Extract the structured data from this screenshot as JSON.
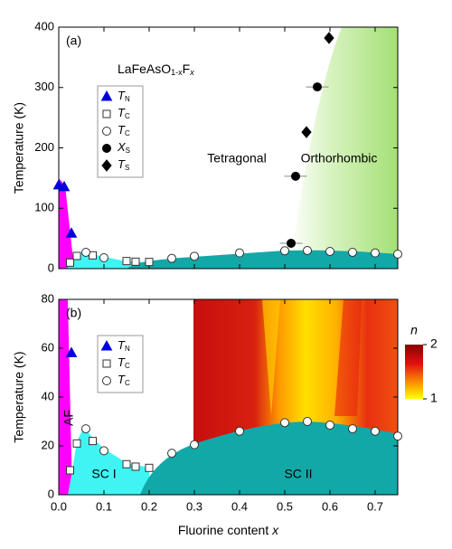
{
  "chart_data": [
    {
      "type": "scatter",
      "panel_label": "(a)",
      "formula": [
        "LaFeAsO",
        "1-x",
        "F",
        "x"
      ],
      "region_labels": [
        "Tetragonal",
        "Orthorhombic"
      ],
      "ylabel": "Temperature (K)",
      "xlim": [
        0,
        0.75
      ],
      "xticks": [
        {
          "value": 0,
          "label": "0.0"
        },
        0.1,
        0.2,
        0.3,
        0.4,
        0.5,
        0.6,
        0.7
      ],
      "ylim": [
        0,
        400
      ],
      "yticks": [
        0,
        100,
        200,
        300,
        400
      ],
      "series": [
        {
          "name": "TN",
          "marker": "triangle",
          "color": "#0000dd",
          "x": [
            0,
            0.012,
            0.028
          ],
          "values": [
            138,
            135,
            58
          ]
        },
        {
          "name": "TC",
          "marker": "square",
          "color": "#ffffff",
          "x": [
            0.025,
            0.04,
            0.075,
            0.15,
            0.17,
            0.2
          ],
          "values": [
            10,
            21,
            22,
            12.5,
            11.5,
            11
          ]
        },
        {
          "name": "TC",
          "marker": "circle",
          "color": "#ffffff",
          "x": [
            0.06,
            0.1,
            0.25,
            0.3,
            0.4,
            0.5,
            0.55,
            0.6,
            0.65,
            0.7,
            0.75
          ],
          "values": [
            27,
            18,
            17,
            20.5,
            26,
            29.5,
            30,
            28.5,
            27,
            26,
            24
          ]
        },
        {
          "name": "XS",
          "marker": "circle",
          "color": "#000000",
          "x": [
            0.514,
            0.524,
            0.572
          ],
          "values": [
            42,
            153,
            301
          ],
          "xerr": [
            0.025,
            0.025,
            0.025
          ]
        },
        {
          "name": "TS",
          "marker": "diamond",
          "color": "#000000",
          "x": [
            0.548,
            0.598
          ],
          "values": [
            226,
            382
          ]
        }
      ]
    },
    {
      "type": "scatter",
      "panel_label": "(b)",
      "region_labels": [
        "AF",
        "SC I",
        "SC II"
      ],
      "ylabel": "Temperature (K)",
      "xlabel": "Fluorine content x",
      "xlim": [
        0,
        0.75
      ],
      "xticks": [
        {
          "value": 0,
          "label": "0.0"
        },
        0.1,
        0.2,
        0.3,
        0.4,
        0.5,
        0.6,
        0.7
      ],
      "ylim": [
        0,
        80
      ],
      "yticks": [
        0,
        20,
        40,
        60,
        80
      ],
      "colorbar": {
        "label": "n",
        "lim": [
          1,
          2
        ],
        "ticks": [
          1,
          2
        ]
      },
      "series": [
        {
          "name": "TN",
          "marker": "triangle",
          "color": "#0000dd",
          "x": [
            0.028
          ],
          "values": [
            58
          ]
        },
        {
          "name": "TC",
          "marker": "square",
          "color": "#ffffff",
          "x": [
            0.025,
            0.04,
            0.075,
            0.15,
            0.17,
            0.2
          ],
          "values": [
            10,
            21,
            22,
            12.5,
            11.5,
            11
          ]
        },
        {
          "name": "TC",
          "marker": "circle",
          "color": "#ffffff",
          "x": [
            0.06,
            0.1,
            0.25,
            0.3,
            0.4,
            0.5,
            0.55,
            0.6,
            0.65,
            0.7,
            0.75
          ],
          "values": [
            27,
            18,
            17,
            20.5,
            26,
            29.5,
            30,
            28.5,
            27,
            26,
            24
          ]
        }
      ]
    }
  ]
}
